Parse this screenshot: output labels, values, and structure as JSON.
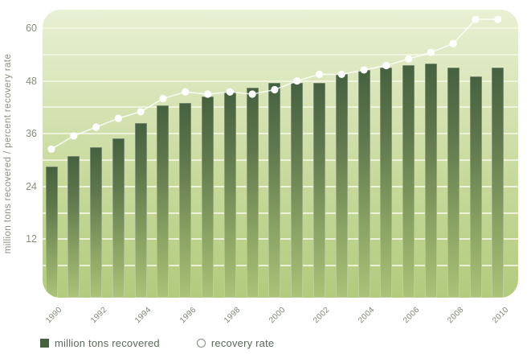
{
  "chart_data": {
    "type": "bar",
    "title": "",
    "categories": [
      "1990",
      "1991",
      "1992",
      "1993",
      "1994",
      "1995",
      "1996",
      "1997",
      "1998",
      "1999",
      "2000",
      "2001",
      "2002",
      "2003",
      "2004",
      "2005",
      "2006",
      "2007",
      "2008",
      "2009",
      "2010"
    ],
    "series": [
      {
        "name": "million tons recovered",
        "type": "bar",
        "values": [
          28.5,
          31,
          33,
          35,
          38.5,
          42.5,
          43,
          44.5,
          45.5,
          46.5,
          47.5,
          47.5,
          47.5,
          49.5,
          50.5,
          51,
          51.5,
          52,
          51,
          49,
          51
        ]
      },
      {
        "name": "recovery rate",
        "type": "line",
        "values": [
          32.5,
          35.5,
          37.5,
          39.5,
          41,
          44,
          45.5,
          45,
          45.5,
          45,
          46,
          48,
          49.5,
          49.5,
          50.5,
          51.5,
          53,
          54.5,
          56.5,
          62,
          62
        ]
      }
    ],
    "xlabel": "",
    "ylabel": "million tons recovered / percent recovery rate",
    "ylim": [
      0,
      65
    ],
    "yticks_labeled": [
      12,
      24,
      36,
      48,
      60
    ],
    "gridline_step": 6,
    "x_ticks_shown": [
      "1990",
      "1992",
      "1994",
      "1996",
      "1998",
      "2000",
      "2002",
      "2004",
      "2006",
      "2008",
      "2010"
    ],
    "grid": true,
    "legend_position": "bottom-left"
  },
  "legend": {
    "bar_label": "million tons recovered",
    "line_label": "recovery rate"
  },
  "colors": {
    "bar_top": "#46613f",
    "bar_mid1": "#5f774c",
    "bar_mid2": "#8aa263",
    "bar_bottom": "#abc278",
    "plot_top": "#e9f0d4",
    "plot_mid": "#c9db9f",
    "plot_bottom": "#b2cb7d",
    "gridline": "#f3f6e3",
    "line": "#ffffff",
    "axis_text": "#8a9181"
  }
}
